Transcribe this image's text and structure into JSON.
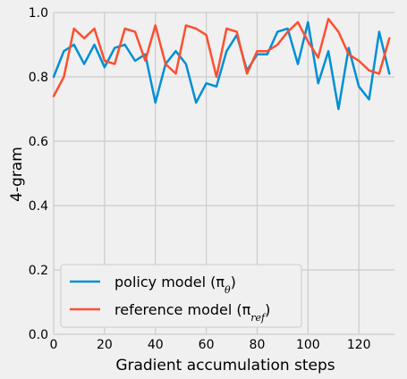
{
  "chart_data": {
    "type": "line",
    "xlabel": "Gradient accumulation steps",
    "ylabel": "4-gram",
    "xlim": [
      0,
      134
    ],
    "ylim": [
      0.0,
      1.0
    ],
    "xticks": [
      0,
      20,
      40,
      60,
      80,
      100,
      120
    ],
    "yticks": [
      0.0,
      0.2,
      0.4,
      0.6,
      0.8,
      1.0
    ],
    "xtick_labels": [
      "0",
      "20",
      "40",
      "60",
      "80",
      "100",
      "120"
    ],
    "ytick_labels": [
      "0.0",
      "0.2",
      "0.4",
      "0.6",
      "0.8",
      "1.0"
    ],
    "grid": true,
    "legend_position": "lower-left",
    "x": [
      0,
      4,
      8,
      12,
      16,
      20,
      24,
      28,
      32,
      36,
      40,
      44,
      48,
      52,
      56,
      60,
      64,
      68,
      72,
      76,
      80,
      84,
      88,
      92,
      96,
      100,
      104,
      108,
      112,
      116,
      120,
      124,
      128,
      132
    ],
    "series": [
      {
        "name": "policy model (π",
        "name_sub": "θ",
        "name_suffix": ")",
        "color": "#008fd5",
        "values": [
          0.8,
          0.88,
          0.9,
          0.84,
          0.9,
          0.83,
          0.89,
          0.9,
          0.85,
          0.87,
          0.72,
          0.84,
          0.88,
          0.84,
          0.72,
          0.78,
          0.77,
          0.88,
          0.93,
          0.82,
          0.87,
          0.87,
          0.94,
          0.95,
          0.84,
          0.97,
          0.78,
          0.88,
          0.7,
          0.89,
          0.77,
          0.73,
          0.94,
          0.81
        ]
      },
      {
        "name": "reference model (π",
        "name_sub": "ref",
        "name_suffix": ")",
        "color": "#fc4f30",
        "values": [
          0.74,
          0.8,
          0.95,
          0.92,
          0.95,
          0.85,
          0.84,
          0.95,
          0.94,
          0.85,
          0.96,
          0.84,
          0.81,
          0.96,
          0.95,
          0.93,
          0.8,
          0.95,
          0.94,
          0.81,
          0.88,
          0.88,
          0.9,
          0.94,
          0.97,
          0.91,
          0.86,
          0.98,
          0.94,
          0.87,
          0.85,
          0.82,
          0.81,
          0.92
        ]
      }
    ]
  }
}
